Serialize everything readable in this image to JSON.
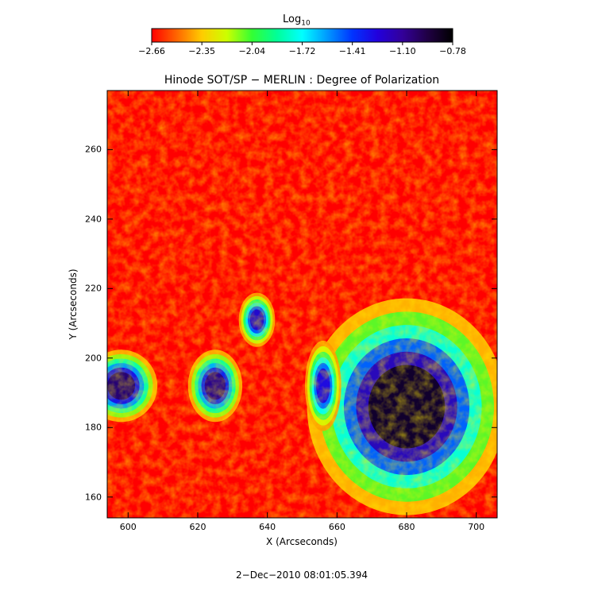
{
  "chart_data": {
    "type": "heatmap",
    "title": "Hinode SOT/SP − MERLIN : Degree of Polarization",
    "xlabel": "X (Arcseconds)",
    "ylabel": "Y (Arcseconds)",
    "xlim": [
      594,
      706
    ],
    "ylim": [
      154,
      277
    ],
    "xticks": [
      "600",
      "620",
      "640",
      "660",
      "680",
      "700"
    ],
    "yticks": [
      "160",
      "180",
      "200",
      "220",
      "240",
      "260"
    ],
    "xtick_values": [
      600,
      620,
      640,
      660,
      680,
      700
    ],
    "ytick_values": [
      160,
      180,
      200,
      220,
      240,
      260
    ],
    "colorbar": {
      "label_main": "Log",
      "label_sub": "10",
      "ticks": [
        "−2.66",
        "−2.35",
        "−2.04",
        "−1.72",
        "−1.41",
        "−1.10",
        "−0.78"
      ],
      "range": [
        -2.66,
        -0.78
      ],
      "colors": [
        "#ff0000",
        "#ff6600",
        "#ffcc00",
        "#ccff00",
        "#33ff33",
        "#00ff99",
        "#00ffff",
        "#0099ff",
        "#0033ff",
        "#2200dd",
        "#330099",
        "#200044",
        "#000000"
      ]
    },
    "features": [
      {
        "name": "sunspot-large",
        "x": 680,
        "y": 186,
        "rx": 11,
        "ry": 12,
        "value": -0.85
      },
      {
        "name": "pore-left",
        "x": 598,
        "y": 192,
        "rx": 4,
        "ry": 4,
        "value": -1.0
      },
      {
        "name": "pore-center-left",
        "x": 625,
        "y": 192,
        "rx": 3,
        "ry": 4,
        "value": -1.05
      },
      {
        "name": "pore-upper",
        "x": 637,
        "y": 211,
        "rx": 2,
        "ry": 3,
        "value": -1.2
      },
      {
        "name": "pore-mid",
        "x": 656,
        "y": 192,
        "rx": 2,
        "ry": 5,
        "value": -1.25
      }
    ],
    "grid": false
  },
  "footer": {
    "timestamp": "2−Dec−2010 08:01:05.394"
  }
}
